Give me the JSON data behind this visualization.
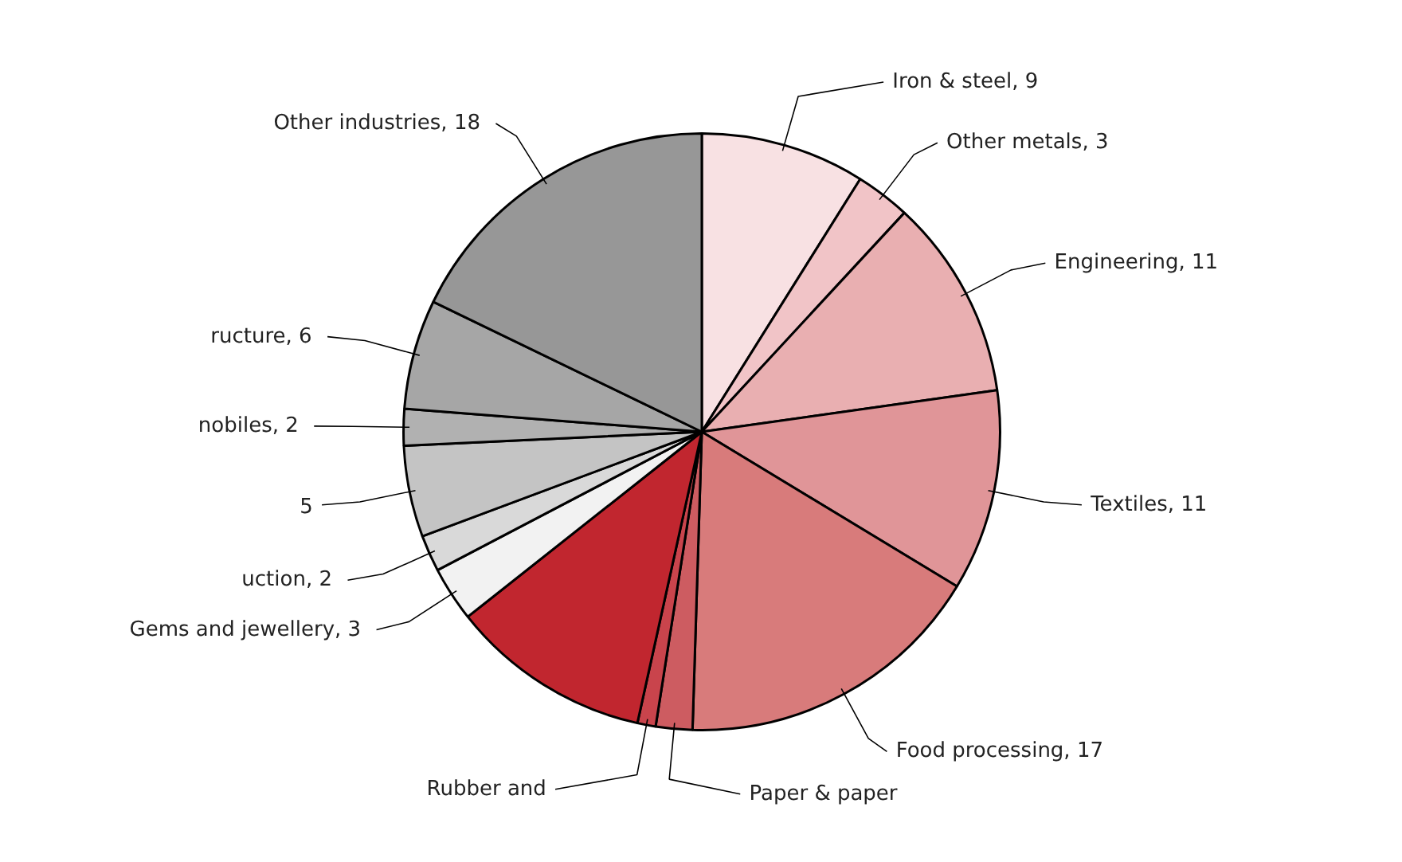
{
  "chart_data": {
    "type": "pie",
    "categories": [
      "Iron & steel",
      "Other metals",
      "Engineering",
      "Textiles",
      "Food processing",
      "Paper & paper",
      "Rubber and",
      null,
      "Gems and jewellery",
      "uction",
      null,
      "nobiles",
      "ructure",
      "Other industries"
    ],
    "values": [
      9,
      3,
      11,
      11,
      17,
      2,
      1,
      11,
      3,
      2,
      5,
      2,
      6,
      18
    ],
    "value_labels": [
      "9",
      "3",
      "11",
      "11",
      "17",
      null,
      null,
      null,
      "3",
      "2",
      "5",
      "2",
      "6",
      "18"
    ],
    "colors": [
      "#f8e1e3",
      "#f1c4c7",
      "#e9afb1",
      "#e09598",
      "#d87b7b",
      "#cd5c61",
      "#c9444c",
      "#c1262f",
      "#f2f2f2",
      "#d9d9d9",
      "#c4c4c4",
      "#b1b1b1",
      "#a6a6a6",
      "#979797"
    ]
  }
}
